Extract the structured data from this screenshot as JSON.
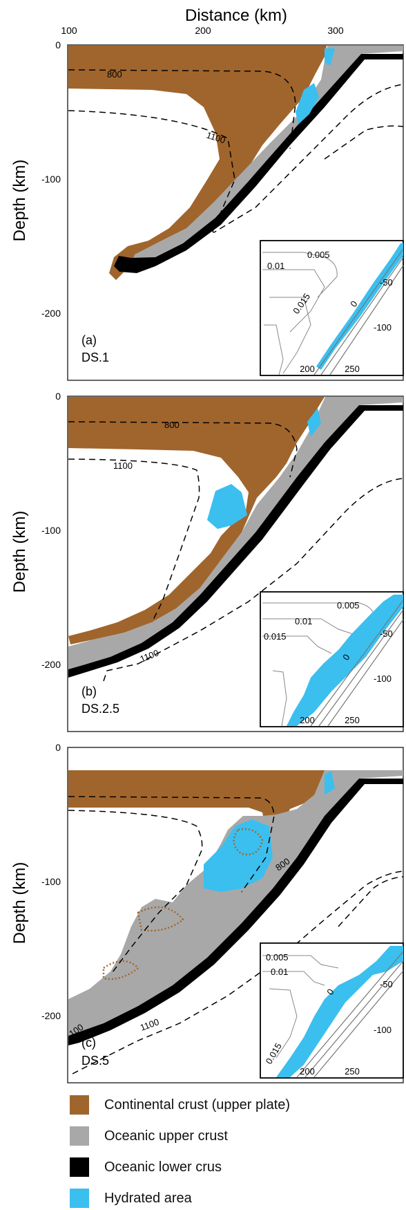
{
  "x_axis": {
    "title": "Distance (km)",
    "ticks": [
      "100",
      "200",
      "300"
    ]
  },
  "y_axis": {
    "title": "Depth (km)",
    "ticks": [
      "0",
      "-100",
      "-200"
    ]
  },
  "panels": [
    {
      "label": "(a)",
      "name": "DS.1",
      "contours": [
        "800",
        "1100"
      ],
      "inset": {
        "contours": [
          "0.005",
          "0.01",
          "0.015",
          "0"
        ],
        "x_ticks": [
          "200",
          "250"
        ],
        "y_ticks": [
          "-50",
          "-100"
        ]
      }
    },
    {
      "label": "(b)",
      "name": "DS.2.5",
      "contours": [
        "800",
        "1100",
        "1100"
      ],
      "inset": {
        "contours": [
          "0.005",
          "0.01",
          "0.015",
          "0"
        ],
        "x_ticks": [
          "200",
          "250"
        ],
        "y_ticks": [
          "-50",
          "-100"
        ]
      }
    },
    {
      "label": "(c)",
      "name": "DS.5",
      "contours": [
        "800",
        "1100",
        "100"
      ],
      "inset": {
        "contours": [
          "0.005",
          "0.01",
          "0.015",
          "0"
        ],
        "x_ticks": [
          "200",
          "250"
        ],
        "y_ticks": [
          "-50",
          "-100"
        ]
      }
    }
  ],
  "legend": [
    {
      "label": "Continental crust (upper plate)",
      "color": "#A0652C"
    },
    {
      "label": "Oceanic upper crust",
      "color": "#A8A8A8"
    },
    {
      "label": "Oceanic lower crus",
      "color": "#000000"
    },
    {
      "label": "Hydrated area",
      "color": "#3BBFEF"
    }
  ]
}
